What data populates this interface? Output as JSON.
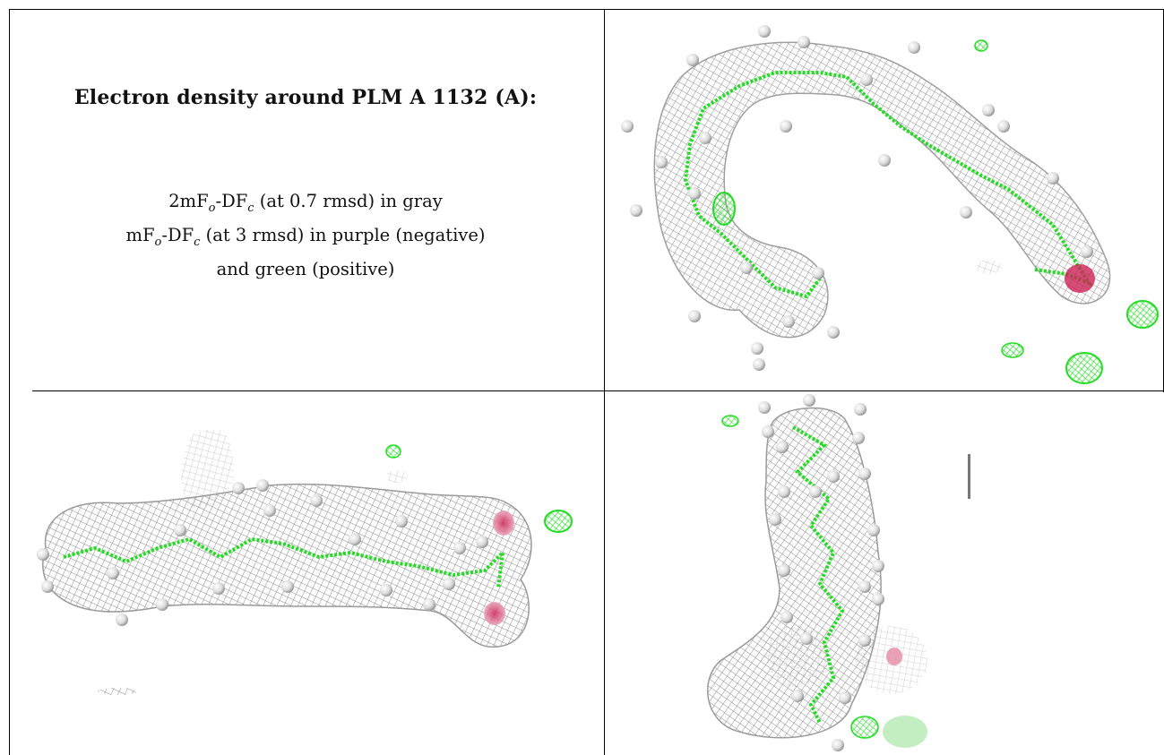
{
  "caption": {
    "title": "Electron density around PLM A 1132 (A):",
    "line1_main": "2mF",
    "line1_sub_o": "o",
    "line1_mid": "-DF",
    "line1_sub_c": "c",
    "line1_tail": " (at 0.7 rmsd) in gray",
    "line2_main": "mF",
    "line2_sub_o": "o",
    "line2_mid": "-DF",
    "line2_sub_c": "c",
    "line2_tail": " (at 3 rmsd) in purple (negative)",
    "line3": "and green (positive)"
  },
  "colors": {
    "mesh_gray": "#8a8a8a",
    "bond_green": "#22dd22",
    "negative_purple": "#cc2255",
    "atom_white": "#e6e6e6",
    "border": "#000000"
  }
}
